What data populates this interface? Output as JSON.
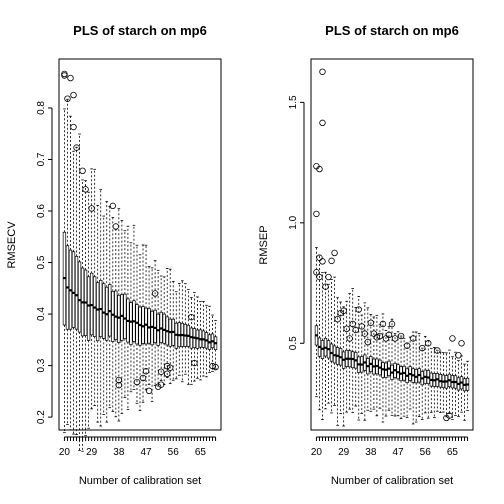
{
  "chart_data": [
    {
      "type": "box",
      "title": "PLS of starch on mp6",
      "xlabel": "Number of calibration set",
      "ylabel": "RMSECV",
      "x": [
        20,
        21,
        22,
        23,
        24,
        25,
        26,
        27,
        28,
        29,
        30,
        31,
        32,
        33,
        34,
        35,
        36,
        37,
        38,
        39,
        40,
        41,
        42,
        43,
        44,
        45,
        46,
        47,
        48,
        49,
        50,
        51,
        52,
        53,
        54,
        55,
        56,
        57,
        58,
        59,
        60,
        61,
        62,
        63,
        64,
        65,
        66,
        67,
        68,
        69,
        70
      ],
      "xlim": [
        18.2,
        71.8
      ],
      "ylim": [
        0.175,
        0.895
      ],
      "x_ticks": [
        20,
        29,
        38,
        47,
        56,
        65
      ],
      "y_ticks": [
        0.2,
        0.3,
        0.4,
        0.5,
        0.6,
        0.7,
        0.8
      ],
      "median_start": 0.47,
      "median_end": 0.345,
      "iqr_start": 0.18,
      "iqr_end": 0.025,
      "whisker_low_start": 0.28,
      "whisker_low_end": 0.045,
      "whisker_high_start": 0.3,
      "whisker_high_end": 0.045,
      "outliers": [
        [
          20,
          0.866
        ],
        [
          20,
          0.863
        ],
        [
          21,
          0.818
        ],
        [
          22,
          0.858
        ],
        [
          23,
          0.825
        ],
        [
          23,
          0.763
        ],
        [
          24,
          0.723
        ],
        [
          26,
          0.678
        ],
        [
          27,
          0.642
        ],
        [
          29,
          0.605
        ],
        [
          36,
          0.61
        ],
        [
          37,
          0.57
        ],
        [
          38,
          0.262
        ],
        [
          38,
          0.272
        ],
        [
          44,
          0.268
        ],
        [
          46,
          0.276
        ],
        [
          47,
          0.289
        ],
        [
          48,
          0.251
        ],
        [
          50,
          0.44
        ],
        [
          51,
          0.259
        ],
        [
          52,
          0.263
        ],
        [
          52,
          0.288
        ],
        [
          54,
          0.284
        ],
        [
          54,
          0.299
        ],
        [
          55,
          0.296
        ],
        [
          62,
          0.394
        ],
        [
          63,
          0.305
        ],
        [
          69,
          0.299
        ],
        [
          70,
          0.297
        ]
      ]
    },
    {
      "type": "box",
      "title": "PLS of starch on mp6",
      "xlabel": "Number of calibration set",
      "ylabel": "RMSEP",
      "x": [
        20,
        21,
        22,
        23,
        24,
        25,
        26,
        27,
        28,
        29,
        30,
        31,
        32,
        33,
        34,
        35,
        36,
        37,
        38,
        39,
        40,
        41,
        42,
        43,
        44,
        45,
        46,
        47,
        48,
        49,
        50,
        51,
        52,
        53,
        54,
        55,
        56,
        57,
        58,
        59,
        60,
        61,
        62,
        63,
        64,
        65,
        66,
        67,
        68,
        69,
        70
      ],
      "xlim": [
        18.2,
        71.8
      ],
      "ylim": [
        0.14,
        1.68
      ],
      "x_ticks": [
        20,
        29,
        38,
        47,
        56,
        65
      ],
      "y_ticks": [
        0.5,
        1.0,
        1.5
      ],
      "median_start": 0.52,
      "median_end": 0.33,
      "iqr_start": 0.08,
      "iqr_end": 0.05,
      "whisker_low_start": 0.3,
      "whisker_low_end": 0.12,
      "whisker_high_start": 0.38,
      "whisker_high_end": 0.08,
      "outliers": [
        [
          20,
          1.235
        ],
        [
          20,
          1.037
        ],
        [
          21,
          1.223
        ],
        [
          22,
          1.627
        ],
        [
          22,
          1.415
        ],
        [
          21,
          0.855
        ],
        [
          22,
          0.84
        ],
        [
          21,
          0.775
        ],
        [
          20,
          0.795
        ],
        [
          23,
          0.735
        ],
        [
          24,
          0.775
        ],
        [
          25,
          0.842
        ],
        [
          26,
          0.875
        ],
        [
          27,
          0.6
        ],
        [
          28,
          0.625
        ],
        [
          29,
          0.635
        ],
        [
          30,
          0.56
        ],
        [
          31,
          0.52
        ],
        [
          32,
          0.58
        ],
        [
          33,
          0.555
        ],
        [
          34,
          0.64
        ],
        [
          35,
          0.57
        ],
        [
          36,
          0.54
        ],
        [
          37,
          0.505
        ],
        [
          38,
          0.585
        ],
        [
          39,
          0.54
        ],
        [
          40,
          0.525
        ],
        [
          41,
          0.53
        ],
        [
          42,
          0.58
        ],
        [
          43,
          0.52
        ],
        [
          44,
          0.535
        ],
        [
          45,
          0.58
        ],
        [
          46,
          0.52
        ],
        [
          48,
          0.53
        ],
        [
          50,
          0.49
        ],
        [
          52,
          0.52
        ],
        [
          55,
          0.48
        ],
        [
          57,
          0.5
        ],
        [
          60,
          0.47
        ],
        [
          63,
          0.19
        ],
        [
          64,
          0.2
        ],
        [
          65,
          0.52
        ],
        [
          67,
          0.45
        ],
        [
          68,
          0.5
        ]
      ]
    }
  ]
}
